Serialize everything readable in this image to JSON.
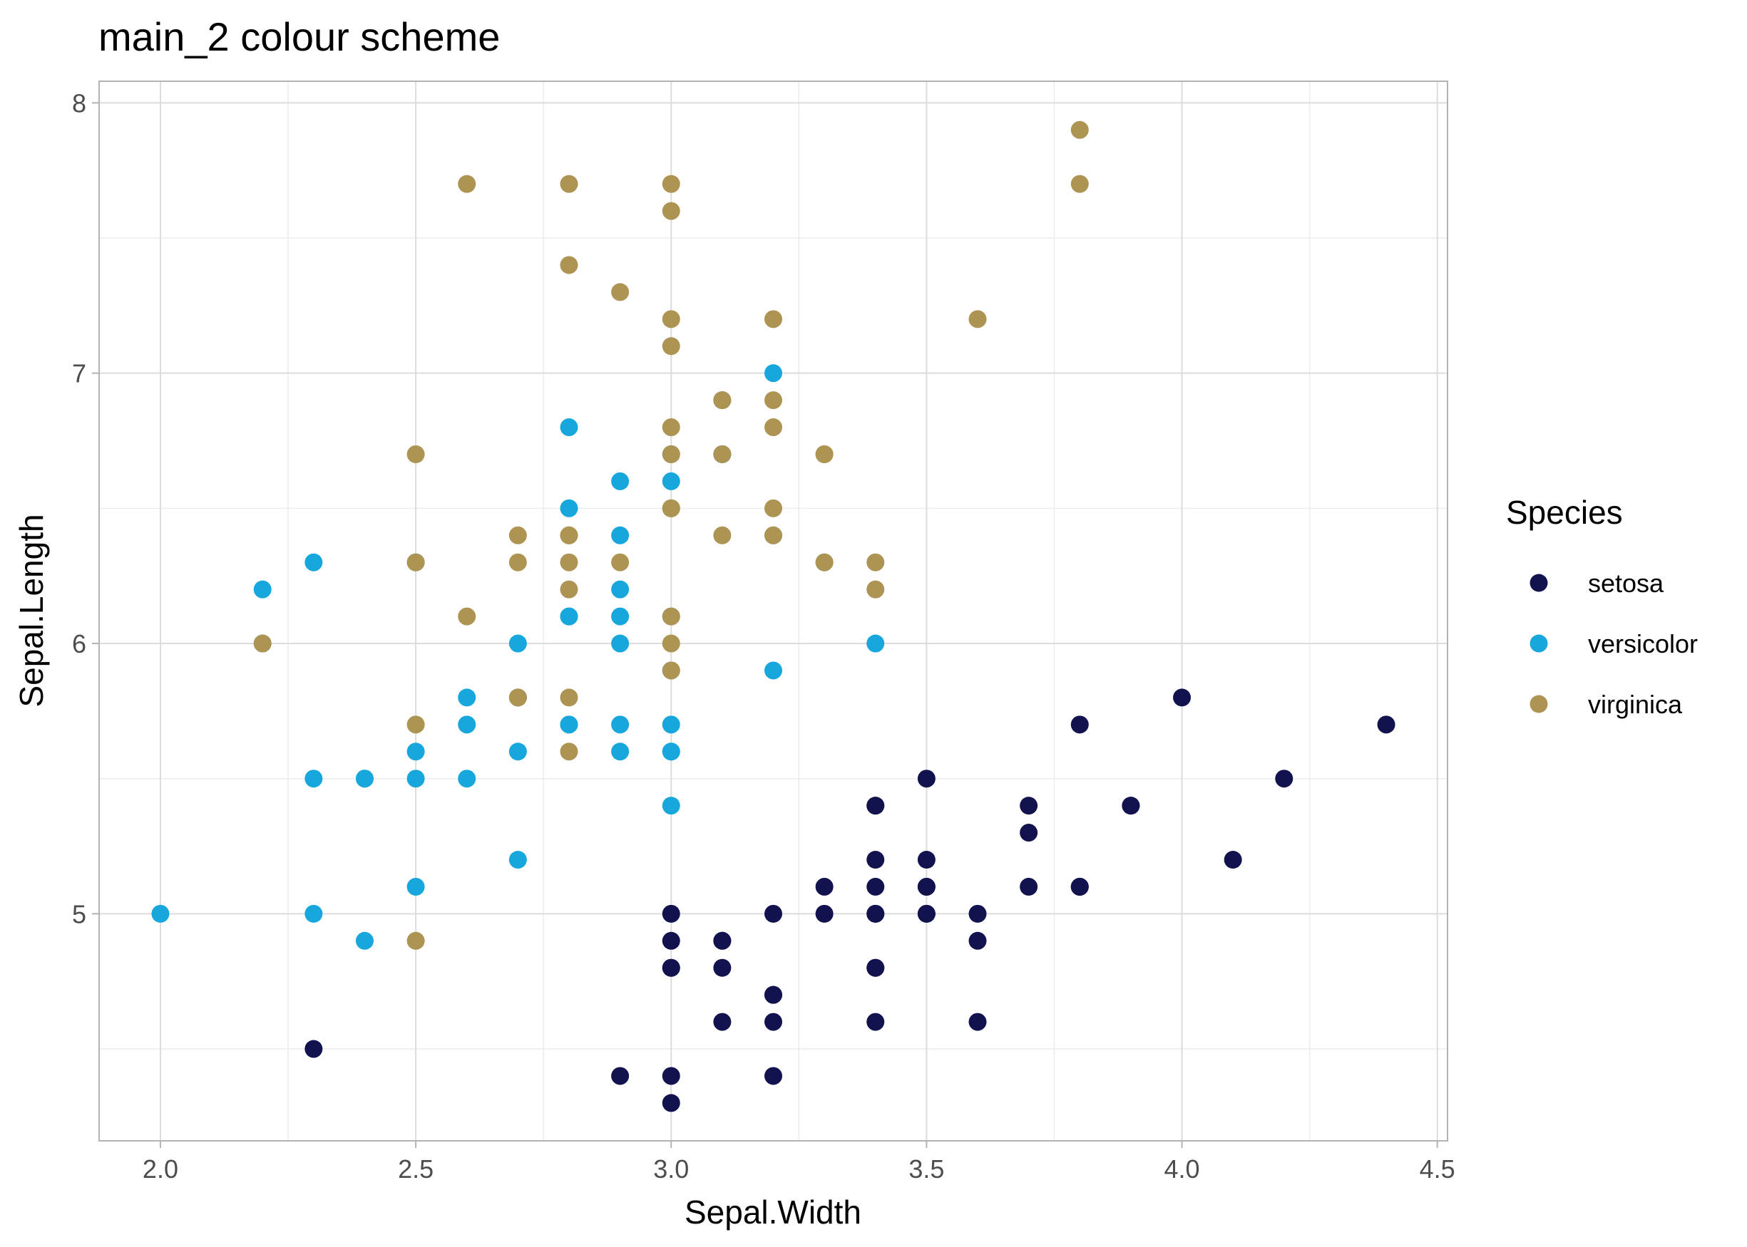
{
  "chart_data": {
    "type": "scatter",
    "title": "main_2 colour scheme",
    "xlabel": "Sepal.Width",
    "ylabel": "Sepal.Length",
    "xlim": [
      1.88,
      4.52
    ],
    "ylim": [
      4.16,
      8.08
    ],
    "xticks": [
      2.0,
      2.5,
      3.0,
      3.5,
      4.0,
      4.5
    ],
    "xtick_labels": [
      "2.0",
      "2.5",
      "3.0",
      "3.5",
      "4.0",
      "4.5"
    ],
    "yticks": [
      5,
      6,
      7,
      8
    ],
    "ytick_labels": [
      "5",
      "6",
      "7",
      "8"
    ],
    "grid": true,
    "legend": {
      "title": "Species",
      "placement": "right"
    },
    "series": [
      {
        "name": "setosa",
        "color": "#12124f",
        "points": [
          [
            3.5,
            5.1
          ],
          [
            3.0,
            4.9
          ],
          [
            3.2,
            4.7
          ],
          [
            3.1,
            4.6
          ],
          [
            3.6,
            5.0
          ],
          [
            3.9,
            5.4
          ],
          [
            3.4,
            4.6
          ],
          [
            3.4,
            5.0
          ],
          [
            2.9,
            4.4
          ],
          [
            3.1,
            4.9
          ],
          [
            3.7,
            5.4
          ],
          [
            3.4,
            4.8
          ],
          [
            3.0,
            4.8
          ],
          [
            3.0,
            4.3
          ],
          [
            4.0,
            5.8
          ],
          [
            4.4,
            5.7
          ],
          [
            3.9,
            5.4
          ],
          [
            3.5,
            5.1
          ],
          [
            3.8,
            5.7
          ],
          [
            3.8,
            5.1
          ],
          [
            3.4,
            5.4
          ],
          [
            3.7,
            5.1
          ],
          [
            3.6,
            4.6
          ],
          [
            3.3,
            5.1
          ],
          [
            3.4,
            4.8
          ],
          [
            3.0,
            5.0
          ],
          [
            3.4,
            5.0
          ],
          [
            3.5,
            5.2
          ],
          [
            3.4,
            5.2
          ],
          [
            3.2,
            4.7
          ],
          [
            3.1,
            4.8
          ],
          [
            3.4,
            5.4
          ],
          [
            4.1,
            5.2
          ],
          [
            4.2,
            5.5
          ],
          [
            3.1,
            4.9
          ],
          [
            3.2,
            5.0
          ],
          [
            3.5,
            5.5
          ],
          [
            3.6,
            4.9
          ],
          [
            3.0,
            4.4
          ],
          [
            3.4,
            5.1
          ],
          [
            3.5,
            5.0
          ],
          [
            2.3,
            4.5
          ],
          [
            3.2,
            4.4
          ],
          [
            3.5,
            5.0
          ],
          [
            3.8,
            5.1
          ],
          [
            3.0,
            4.8
          ],
          [
            3.8,
            5.1
          ],
          [
            3.2,
            4.6
          ],
          [
            3.7,
            5.3
          ],
          [
            3.3,
            5.0
          ]
        ]
      },
      {
        "name": "versicolor",
        "color": "#17a7dd",
        "points": [
          [
            3.2,
            7.0
          ],
          [
            3.2,
            6.4
          ],
          [
            3.1,
            6.9
          ],
          [
            2.3,
            5.5
          ],
          [
            2.8,
            6.5
          ],
          [
            2.8,
            5.7
          ],
          [
            3.3,
            6.3
          ],
          [
            2.4,
            4.9
          ],
          [
            2.9,
            6.6
          ],
          [
            2.7,
            5.2
          ],
          [
            2.0,
            5.0
          ],
          [
            3.0,
            5.9
          ],
          [
            2.2,
            6.0
          ],
          [
            2.9,
            6.1
          ],
          [
            2.9,
            5.6
          ],
          [
            3.1,
            6.7
          ],
          [
            3.0,
            5.6
          ],
          [
            2.7,
            5.8
          ],
          [
            2.2,
            6.2
          ],
          [
            2.5,
            5.6
          ],
          [
            3.2,
            5.9
          ],
          [
            2.8,
            6.1
          ],
          [
            2.5,
            6.3
          ],
          [
            2.8,
            6.1
          ],
          [
            2.9,
            6.4
          ],
          [
            3.0,
            6.6
          ],
          [
            2.8,
            6.8
          ],
          [
            3.0,
            6.7
          ],
          [
            2.9,
            6.0
          ],
          [
            2.6,
            5.7
          ],
          [
            2.4,
            5.5
          ],
          [
            2.4,
            5.5
          ],
          [
            2.7,
            5.8
          ],
          [
            2.7,
            6.0
          ],
          [
            3.0,
            5.4
          ],
          [
            3.4,
            6.0
          ],
          [
            3.1,
            6.7
          ],
          [
            2.3,
            6.3
          ],
          [
            3.0,
            5.6
          ],
          [
            2.5,
            5.5
          ],
          [
            2.6,
            5.5
          ],
          [
            3.0,
            6.1
          ],
          [
            2.6,
            5.8
          ],
          [
            2.3,
            5.0
          ],
          [
            2.7,
            5.6
          ],
          [
            3.0,
            5.7
          ],
          [
            2.9,
            5.7
          ],
          [
            2.9,
            6.2
          ],
          [
            2.5,
            5.1
          ],
          [
            2.8,
            5.7
          ]
        ]
      },
      {
        "name": "virginica",
        "color": "#ae9452",
        "points": [
          [
            3.3,
            6.3
          ],
          [
            2.7,
            5.8
          ],
          [
            3.0,
            7.1
          ],
          [
            2.9,
            6.3
          ],
          [
            3.0,
            6.5
          ],
          [
            3.0,
            7.6
          ],
          [
            2.5,
            4.9
          ],
          [
            2.9,
            7.3
          ],
          [
            2.5,
            6.7
          ],
          [
            3.6,
            7.2
          ],
          [
            3.2,
            6.5
          ],
          [
            2.7,
            6.4
          ],
          [
            3.0,
            6.8
          ],
          [
            2.5,
            5.7
          ],
          [
            2.8,
            5.8
          ],
          [
            3.2,
            6.4
          ],
          [
            3.0,
            6.5
          ],
          [
            3.8,
            7.7
          ],
          [
            2.6,
            7.7
          ],
          [
            2.2,
            6.0
          ],
          [
            3.2,
            6.9
          ],
          [
            2.8,
            5.6
          ],
          [
            2.8,
            7.7
          ],
          [
            2.7,
            6.3
          ],
          [
            3.3,
            6.7
          ],
          [
            3.2,
            7.2
          ],
          [
            2.8,
            6.2
          ],
          [
            3.0,
            6.1
          ],
          [
            2.8,
            6.4
          ],
          [
            3.0,
            7.2
          ],
          [
            2.8,
            7.4
          ],
          [
            3.8,
            7.9
          ],
          [
            2.8,
            6.4
          ],
          [
            2.8,
            6.3
          ],
          [
            2.6,
            6.1
          ],
          [
            3.0,
            7.7
          ],
          [
            3.4,
            6.3
          ],
          [
            3.1,
            6.4
          ],
          [
            3.0,
            6.0
          ],
          [
            3.1,
            6.9
          ],
          [
            3.1,
            6.7
          ],
          [
            3.1,
            6.9
          ],
          [
            2.7,
            5.8
          ],
          [
            3.2,
            6.8
          ],
          [
            3.3,
            6.7
          ],
          [
            3.0,
            6.7
          ],
          [
            2.5,
            6.3
          ],
          [
            3.0,
            6.5
          ],
          [
            3.4,
            6.2
          ],
          [
            3.0,
            5.9
          ]
        ]
      }
    ]
  }
}
